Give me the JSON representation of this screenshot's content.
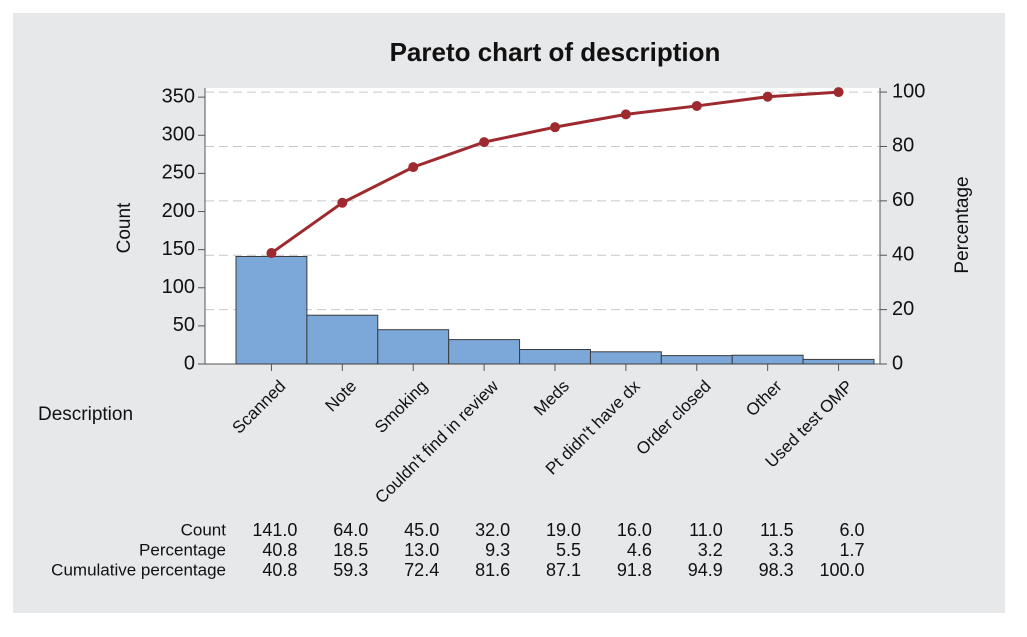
{
  "chart_data": {
    "type": "pareto",
    "title": "Pareto chart of description",
    "x_label": "Description",
    "y_label": "Count",
    "y2_label": "Percentage",
    "categories": [
      "Scanned",
      "Note",
      "Smoking",
      "Couldn't find in review",
      "Meds",
      "Pt didn't have dx",
      "Order closed",
      "Other",
      "Used test OMP"
    ],
    "series": [
      {
        "name": "Count",
        "type": "bar",
        "color": "#7ba7d9",
        "values": [
          141,
          64,
          45,
          32,
          19,
          16,
          11,
          11.5,
          6
        ],
        "value_labels": [
          "141.0",
          "64.0",
          "45.0",
          "32.0",
          "19.0",
          "16.0",
          "11.0",
          "11.5",
          "6.0"
        ]
      },
      {
        "name": "Cumulative percentage",
        "type": "line",
        "axis": "y2",
        "color": "#9e2a2f",
        "values": [
          40.8,
          59.3,
          72.4,
          81.6,
          87.1,
          91.8,
          94.9,
          98.3,
          100
        ],
        "value_labels": [
          "40.8",
          "59.3",
          "72.4",
          "81.6",
          "87.1",
          "91.8",
          "94.9",
          "98.3",
          "100.0"
        ]
      }
    ],
    "percentage_row": {
      "name": "Percentage",
      "labels": [
        "40.8",
        "18.5",
        "13.0",
        "9.3",
        "5.5",
        "4.6",
        "3.2",
        "3.3",
        "1.7"
      ]
    },
    "ylim": [
      0,
      362
    ],
    "yticks": [
      0,
      50,
      100,
      150,
      200,
      250,
      300,
      350
    ],
    "y2lim": [
      0,
      101.5
    ],
    "y2ticks": [
      0,
      20,
      40,
      60,
      80,
      100
    ],
    "grid": true
  }
}
